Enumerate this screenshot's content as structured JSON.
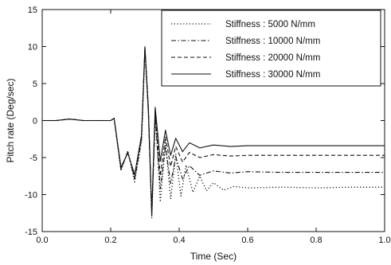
{
  "chart_data": {
    "type": "line",
    "title": "",
    "xlabel": "Time (Sec)",
    "ylabel": "Pitch rate (Deg/sec)",
    "xlim": [
      0.0,
      1.0
    ],
    "ylim": [
      -15,
      15
    ],
    "xticks": [
      0.0,
      0.2,
      0.4,
      0.6,
      0.8,
      1.0
    ],
    "xtick_labels": [
      "0.0",
      "0.2",
      "0.4",
      "0.6",
      "0.8",
      "1.0"
    ],
    "yticks": [
      -15,
      -10,
      -5,
      0,
      5,
      10,
      15
    ],
    "ytick_labels": [
      "-15",
      "-10",
      "-5",
      "0",
      "5",
      "10",
      "15"
    ],
    "grid": false,
    "legend_position": "top-right",
    "series": [
      {
        "name": "Stiffness : 5000 N/mm",
        "style": "dotted",
        "points": [
          [
            0.0,
            0
          ],
          [
            0.04,
            0
          ],
          [
            0.08,
            0.2
          ],
          [
            0.12,
            0
          ],
          [
            0.16,
            0
          ],
          [
            0.2,
            0
          ],
          [
            0.21,
            0.3
          ],
          [
            0.23,
            -6.8
          ],
          [
            0.25,
            -4.1
          ],
          [
            0.27,
            -8.3
          ],
          [
            0.29,
            -3
          ],
          [
            0.3,
            9.6
          ],
          [
            0.31,
            1
          ],
          [
            0.32,
            -13.2
          ],
          [
            0.33,
            1.5
          ],
          [
            0.345,
            -11
          ],
          [
            0.36,
            -3
          ],
          [
            0.375,
            -10.6
          ],
          [
            0.39,
            -4.5
          ],
          [
            0.405,
            -10.2
          ],
          [
            0.42,
            -6
          ],
          [
            0.44,
            -9.7
          ],
          [
            0.46,
            -7.5
          ],
          [
            0.48,
            -9.5
          ],
          [
            0.5,
            -8.4
          ],
          [
            0.53,
            -9.4
          ],
          [
            0.56,
            -8.9
          ],
          [
            0.6,
            -9.1
          ],
          [
            0.7,
            -9.0
          ],
          [
            0.8,
            -9.1
          ],
          [
            0.9,
            -9.0
          ],
          [
            1.0,
            -9.0
          ]
        ]
      },
      {
        "name": "Stiffness : 10000 N/mm",
        "style": "dash-dot",
        "points": [
          [
            0.0,
            0
          ],
          [
            0.04,
            0
          ],
          [
            0.08,
            0.2
          ],
          [
            0.12,
            0
          ],
          [
            0.16,
            0
          ],
          [
            0.2,
            0
          ],
          [
            0.21,
            0.3
          ],
          [
            0.23,
            -6.6
          ],
          [
            0.25,
            -4.2
          ],
          [
            0.27,
            -7.9
          ],
          [
            0.29,
            -2.5
          ],
          [
            0.3,
            9.7
          ],
          [
            0.31,
            1.2
          ],
          [
            0.32,
            -12.8
          ],
          [
            0.33,
            0.5
          ],
          [
            0.345,
            -9.2
          ],
          [
            0.36,
            -3.5
          ],
          [
            0.375,
            -8.5
          ],
          [
            0.39,
            -4.9
          ],
          [
            0.41,
            -7.9
          ],
          [
            0.43,
            -6.1
          ],
          [
            0.46,
            -7.4
          ],
          [
            0.5,
            -6.8
          ],
          [
            0.55,
            -7.1
          ],
          [
            0.6,
            -6.9
          ],
          [
            0.7,
            -7.0
          ],
          [
            0.8,
            -7.0
          ],
          [
            0.9,
            -7.0
          ],
          [
            1.0,
            -7.0
          ]
        ]
      },
      {
        "name": "Stiffness : 20000 N/mm",
        "style": "dashed",
        "points": [
          [
            0.0,
            0
          ],
          [
            0.04,
            0
          ],
          [
            0.08,
            0.2
          ],
          [
            0.12,
            0
          ],
          [
            0.16,
            0
          ],
          [
            0.2,
            0
          ],
          [
            0.21,
            0.3
          ],
          [
            0.23,
            -6.5
          ],
          [
            0.25,
            -4.3
          ],
          [
            0.27,
            -7.6
          ],
          [
            0.29,
            -2.2
          ],
          [
            0.3,
            9.8
          ],
          [
            0.31,
            1.5
          ],
          [
            0.32,
            -12.6
          ],
          [
            0.33,
            0.8
          ],
          [
            0.345,
            -7.5
          ],
          [
            0.36,
            -2.2
          ],
          [
            0.375,
            -6.2
          ],
          [
            0.39,
            -3.5
          ],
          [
            0.41,
            -5.6
          ],
          [
            0.43,
            -4.3
          ],
          [
            0.46,
            -5.0
          ],
          [
            0.5,
            -4.6
          ],
          [
            0.55,
            -4.8
          ],
          [
            0.6,
            -4.7
          ],
          [
            0.7,
            -4.7
          ],
          [
            0.8,
            -4.7
          ],
          [
            0.9,
            -4.7
          ],
          [
            1.0,
            -4.7
          ]
        ]
      },
      {
        "name": "Stiffness : 30000 N/mm",
        "style": "solid",
        "points": [
          [
            0.0,
            0
          ],
          [
            0.04,
            0
          ],
          [
            0.08,
            0.2
          ],
          [
            0.12,
            0
          ],
          [
            0.16,
            0
          ],
          [
            0.2,
            0
          ],
          [
            0.21,
            0.3
          ],
          [
            0.23,
            -6.3
          ],
          [
            0.25,
            -4.4
          ],
          [
            0.27,
            -7.3
          ],
          [
            0.29,
            -2
          ],
          [
            0.3,
            10
          ],
          [
            0.31,
            1.8
          ],
          [
            0.32,
            -12.4
          ],
          [
            0.33,
            1.8
          ],
          [
            0.345,
            -5.5
          ],
          [
            0.36,
            -1.3
          ],
          [
            0.375,
            -4.7
          ],
          [
            0.39,
            -2.4
          ],
          [
            0.41,
            -4.2
          ],
          [
            0.43,
            -3.0
          ],
          [
            0.46,
            -3.7
          ],
          [
            0.5,
            -3.3
          ],
          [
            0.55,
            -3.5
          ],
          [
            0.6,
            -3.4
          ],
          [
            0.7,
            -3.4
          ],
          [
            0.8,
            -3.4
          ],
          [
            0.9,
            -3.4
          ],
          [
            1.0,
            -3.4
          ]
        ]
      }
    ]
  }
}
